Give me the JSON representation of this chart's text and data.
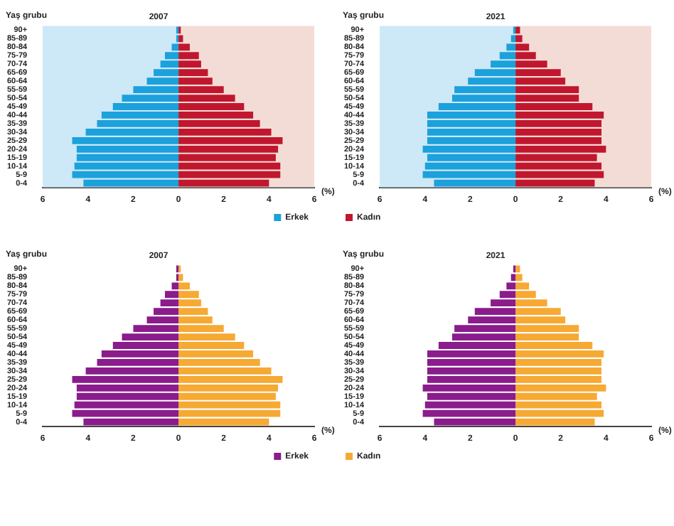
{
  "chart_data": [
    {
      "type": "bar",
      "orientation": "horizontal",
      "stacked": true,
      "title": "2007",
      "ylabel": "Yaş grubu",
      "xlabel": "(%)",
      "categories": [
        "90+",
        "85-89",
        "80-84",
        "75-79",
        "70-74",
        "65-69",
        "60-64",
        "55-59",
        "50-54",
        "45-49",
        "40-44",
        "35-39",
        "30-34",
        "25-29",
        "20-24",
        "15-19",
        "10-14",
        "5-9",
        "0-4"
      ],
      "series": [
        {
          "name": "Erkek",
          "color": "#1ba1dc",
          "values": [
            -0.1,
            -0.1,
            -0.3,
            -0.6,
            -0.8,
            -1.1,
            -1.4,
            -2.0,
            -2.5,
            -2.9,
            -3.4,
            -3.6,
            -4.1,
            -4.7,
            -4.5,
            -4.5,
            -4.6,
            -4.7,
            -4.2
          ]
        },
        {
          "color": "#c0172f",
          "values": [
            0.1,
            0.2,
            0.5,
            0.9,
            1.0,
            1.3,
            1.5,
            2.0,
            2.5,
            2.9,
            3.3,
            3.6,
            4.1,
            4.6,
            4.4,
            4.3,
            4.5,
            4.5,
            4.0
          ]
        }
      ],
      "xlim": [
        -6,
        6
      ],
      "xticks": [
        {
          "value": -6,
          "label": "6"
        },
        {
          "value": -4,
          "label": "4"
        },
        {
          "value": -2,
          "label": "2"
        },
        0,
        2,
        4,
        6
      ],
      "bands": [
        {
          "axis": "x",
          "from": -6,
          "to": 0,
          "color": "#cde8f6"
        },
        {
          "axis": "x",
          "from": 0,
          "to": 6,
          "color": "#f4dcd6"
        }
      ],
      "legend": "bottom right"
    },
    {
      "type": "bar",
      "orientation": "horizontal",
      "stacked": true,
      "title": "2021",
      "ylabel": "Yaş grubu",
      "xlabel": "(%)",
      "categories": [
        "90+",
        "85-89",
        "80-84",
        "75-79",
        "70-74",
        "65-69",
        "60-64",
        "55-59",
        "50-54",
        "45-49",
        "40-44",
        "35-39",
        "30-34",
        "25-29",
        "20-24",
        "15-19",
        "10-14",
        "5-9",
        "0-4"
      ],
      "series": [
        {
          "color": "#1ba1dc",
          "values": [
            -0.1,
            -0.2,
            -0.4,
            -0.7,
            -1.1,
            -1.8,
            -2.1,
            -2.7,
            -2.8,
            -3.4,
            -3.9,
            -3.9,
            -3.9,
            -3.9,
            -4.1,
            -3.9,
            -4.0,
            -4.1,
            -3.6
          ]
        },
        {
          "name": "Kadın",
          "color": "#c0172f",
          "values": [
            0.2,
            0.3,
            0.6,
            0.9,
            1.4,
            2.0,
            2.2,
            2.8,
            2.8,
            3.4,
            3.9,
            3.8,
            3.8,
            3.8,
            4.0,
            3.6,
            3.8,
            3.9,
            3.5
          ]
        }
      ],
      "xlim": [
        -6,
        6
      ],
      "xticks": [
        {
          "value": -6,
          "label": "6"
        },
        {
          "value": -4,
          "label": "4"
        },
        {
          "value": -2,
          "label": "2"
        },
        0,
        2,
        4,
        6
      ],
      "bands": [
        {
          "axis": "x",
          "from": -6,
          "to": 0,
          "color": "#cde8f6"
        },
        {
          "axis": "x",
          "from": 0,
          "to": 6,
          "color": "#f4dcd6"
        }
      ],
      "legend": "bottom left"
    },
    {
      "type": "bar",
      "orientation": "horizontal",
      "stacked": true,
      "title": "2007",
      "ylabel": "Yaş grubu",
      "xlabel": "(%)",
      "categories": [
        "90+",
        "85-89",
        "80-84",
        "75-79",
        "70-74",
        "65-69",
        "60-64",
        "55-59",
        "50-54",
        "45-49",
        "40-44",
        "35-39",
        "30-34",
        "25-29",
        "20-24",
        "15-19",
        "10-14",
        "5-9",
        "0-4"
      ],
      "series": [
        {
          "name": "Erkek",
          "color": "#8a1c8c",
          "values": [
            -0.1,
            -0.1,
            -0.3,
            -0.6,
            -0.8,
            -1.1,
            -1.4,
            -2.0,
            -2.5,
            -2.9,
            -3.4,
            -3.6,
            -4.1,
            -4.7,
            -4.5,
            -4.5,
            -4.6,
            -4.7,
            -4.2
          ]
        },
        {
          "color": "#f6a933",
          "values": [
            0.1,
            0.2,
            0.5,
            0.9,
            1.0,
            1.3,
            1.5,
            2.0,
            2.5,
            2.9,
            3.3,
            3.6,
            4.1,
            4.6,
            4.4,
            4.3,
            4.5,
            4.5,
            4.0
          ]
        }
      ],
      "xlim": [
        -6,
        6
      ],
      "xticks": [
        {
          "value": -6,
          "label": "6"
        },
        {
          "value": -4,
          "label": "4"
        },
        {
          "value": -2,
          "label": "2"
        },
        0,
        2,
        4,
        6
      ],
      "legend": "bottom right"
    },
    {
      "type": "bar",
      "orientation": "horizontal",
      "stacked": true,
      "title": "2021",
      "ylabel": "Yaş grubu",
      "xlabel": "(%)",
      "categories": [
        "90+",
        "85-89",
        "80-84",
        "75-79",
        "70-74",
        "65-69",
        "60-64",
        "55-59",
        "50-54",
        "45-49",
        "40-44",
        "35-39",
        "30-34",
        "25-29",
        "20-24",
        "15-19",
        "10-14",
        "5-9",
        "0-4"
      ],
      "series": [
        {
          "color": "#8a1c8c",
          "values": [
            -0.1,
            -0.2,
            -0.4,
            -0.7,
            -1.1,
            -1.8,
            -2.1,
            -2.7,
            -2.8,
            -3.4,
            -3.9,
            -3.9,
            -3.9,
            -3.9,
            -4.1,
            -3.9,
            -4.0,
            -4.1,
            -3.6
          ]
        },
        {
          "name": "Kadın",
          "color": "#f6a933",
          "values": [
            0.2,
            0.3,
            0.6,
            0.9,
            1.4,
            2.0,
            2.2,
            2.8,
            2.8,
            3.4,
            3.9,
            3.8,
            3.8,
            3.8,
            4.0,
            3.6,
            3.8,
            3.9,
            3.5
          ]
        }
      ],
      "xlim": [
        -6,
        6
      ],
      "xticks": [
        {
          "value": -6,
          "label": "6"
        },
        {
          "value": -4,
          "label": "4"
        },
        {
          "value": -2,
          "label": "2"
        },
        0,
        2,
        4,
        6
      ],
      "legend": "bottom left"
    }
  ]
}
